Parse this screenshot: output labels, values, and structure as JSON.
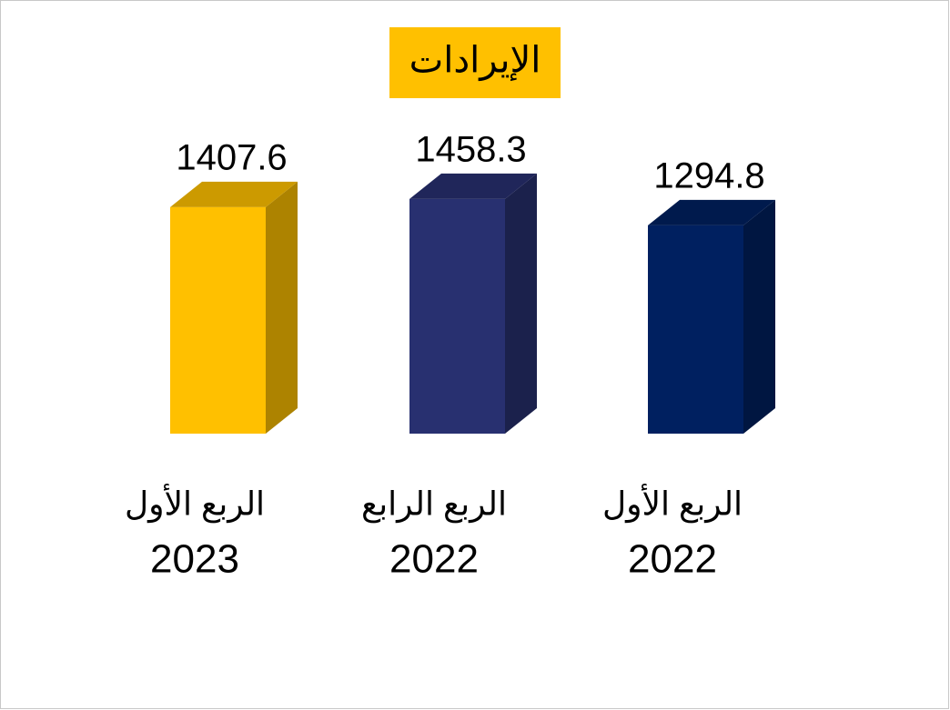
{
  "chart_data": {
    "type": "bar3d",
    "title": "الإيرادات",
    "categories": [
      [
        "الربع الأول",
        "2023"
      ],
      [
        "الربع الرابع",
        "2022"
      ],
      [
        "الربع الأول",
        "2022"
      ]
    ],
    "values": [
      1407.6,
      1458.3,
      1294.8
    ],
    "colors": [
      "#ffc000",
      "#283070",
      "#002060"
    ]
  }
}
